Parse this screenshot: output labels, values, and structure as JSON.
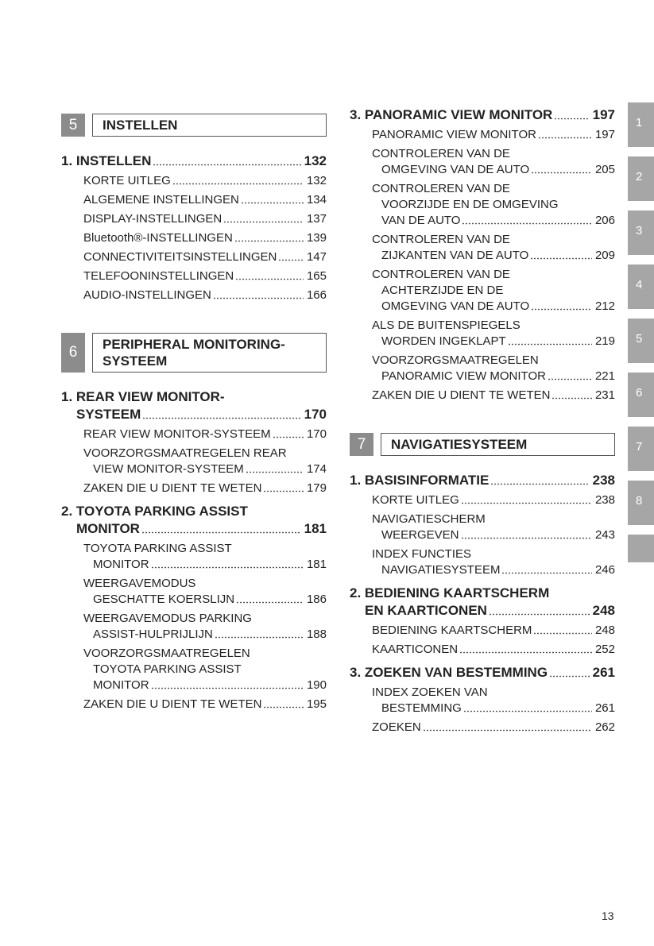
{
  "sections": [
    {
      "number": "5",
      "title_lines": [
        "INSTELLEN"
      ],
      "chapters": [
        {
          "lines": [
            "1. INSTELLEN"
          ],
          "page": 132,
          "entries": [
            {
              "lines": [
                "KORTE UITLEG"
              ],
              "page": 132
            },
            {
              "lines": [
                "ALGEMENE INSTELLINGEN"
              ],
              "page": 134
            },
            {
              "lines": [
                "DISPLAY-INSTELLINGEN"
              ],
              "page": 137
            },
            {
              "lines": [
                "Bluetooth®-INSTELLINGEN"
              ],
              "page": 139
            },
            {
              "lines": [
                "CONNECTIVITEITSINSTELLINGEN"
              ],
              "page": 147
            },
            {
              "lines": [
                "TELEFOONINSTELLINGEN"
              ],
              "page": 165
            },
            {
              "lines": [
                "AUDIO-INSTELLINGEN"
              ],
              "page": 166
            }
          ]
        }
      ]
    },
    {
      "number": "6",
      "title_lines": [
        "PERIPHERAL MONITORING-",
        "SYSTEEM"
      ],
      "chapters": [
        {
          "lines": [
            "1. REAR VIEW MONITOR-",
            "SYSTEEM"
          ],
          "page": 170,
          "entries": [
            {
              "lines": [
                "REAR VIEW MONITOR-SYSTEEM"
              ],
              "page": 170
            },
            {
              "lines": [
                "VOORZORGSMAATREGELEN REAR",
                "VIEW MONITOR-SYSTEEM"
              ],
              "page": 174
            },
            {
              "lines": [
                "ZAKEN DIE U DIENT TE WETEN"
              ],
              "page": 179
            }
          ]
        },
        {
          "lines": [
            "2. TOYOTA PARKING ASSIST",
            "MONITOR"
          ],
          "page": 181,
          "entries": [
            {
              "lines": [
                "TOYOTA PARKING ASSIST",
                "MONITOR"
              ],
              "page": 181
            },
            {
              "lines": [
                "WEERGAVEMODUS",
                "GESCHATTE KOERSLIJN"
              ],
              "page": 186
            },
            {
              "lines": [
                "WEERGAVEMODUS PARKING",
                "ASSIST-HULPRIJLIJN"
              ],
              "page": 188
            },
            {
              "lines": [
                "VOORZORGSMAATREGELEN",
                "TOYOTA PARKING ASSIST",
                "MONITOR"
              ],
              "page": 190
            },
            {
              "lines": [
                "ZAKEN DIE U DIENT TE WETEN"
              ],
              "page": 195
            }
          ]
        },
        {
          "lines": [
            "3. PANORAMIC VIEW MONITOR"
          ],
          "page": 197,
          "entries": [
            {
              "lines": [
                "PANORAMIC VIEW MONITOR"
              ],
              "page": 197
            },
            {
              "lines": [
                "CONTROLEREN VAN DE",
                "OMGEVING VAN DE AUTO"
              ],
              "page": 205
            },
            {
              "lines": [
                "CONTROLEREN VAN DE",
                "VOORZIJDE EN DE OMGEVING",
                "VAN DE AUTO"
              ],
              "page": 206
            },
            {
              "lines": [
                "CONTROLEREN VAN DE",
                "ZIJKANTEN VAN DE AUTO"
              ],
              "page": 209
            },
            {
              "lines": [
                "CONTROLEREN VAN DE",
                "ACHTERZIJDE EN DE",
                "OMGEVING VAN DE AUTO"
              ],
              "page": 212
            },
            {
              "lines": [
                "ALS DE BUITENSPIEGELS",
                "WORDEN INGEKLAPT"
              ],
              "page": 219
            },
            {
              "lines": [
                "VOORZORGSMAATREGELEN",
                "PANORAMIC VIEW MONITOR"
              ],
              "page": 221
            },
            {
              "lines": [
                "ZAKEN DIE U DIENT TE WETEN"
              ],
              "page": 231
            }
          ]
        }
      ]
    },
    {
      "number": "7",
      "title_lines": [
        "NAVIGATIESYSTEEM"
      ],
      "chapters": [
        {
          "lines": [
            "1. BASISINFORMATIE"
          ],
          "page": 238,
          "entries": [
            {
              "lines": [
                "KORTE UITLEG"
              ],
              "page": 238
            },
            {
              "lines": [
                "NAVIGATIESCHERM",
                "WEERGEVEN"
              ],
              "page": 243
            },
            {
              "lines": [
                "INDEX FUNCTIES",
                "NAVIGATIESYSTEEM"
              ],
              "page": 246
            }
          ]
        },
        {
          "lines": [
            "2. BEDIENING KAARTSCHERM",
            "EN KAARTICONEN"
          ],
          "page": 248,
          "entries": [
            {
              "lines": [
                "BEDIENING KAARTSCHERM"
              ],
              "page": 248
            },
            {
              "lines": [
                "KAARTICONEN"
              ],
              "page": 252
            }
          ]
        },
        {
          "lines": [
            "3. ZOEKEN VAN BESTEMMING"
          ],
          "page": 261,
          "entries": [
            {
              "lines": [
                "INDEX ZOEKEN VAN",
                "BESTEMMING"
              ],
              "page": 261
            },
            {
              "lines": [
                "ZOEKEN"
              ],
              "page": 262
            }
          ]
        }
      ]
    }
  ],
  "tabs": [
    "1",
    "2",
    "3",
    "4",
    "5",
    "6",
    "7",
    "8"
  ],
  "page_number": 13
}
